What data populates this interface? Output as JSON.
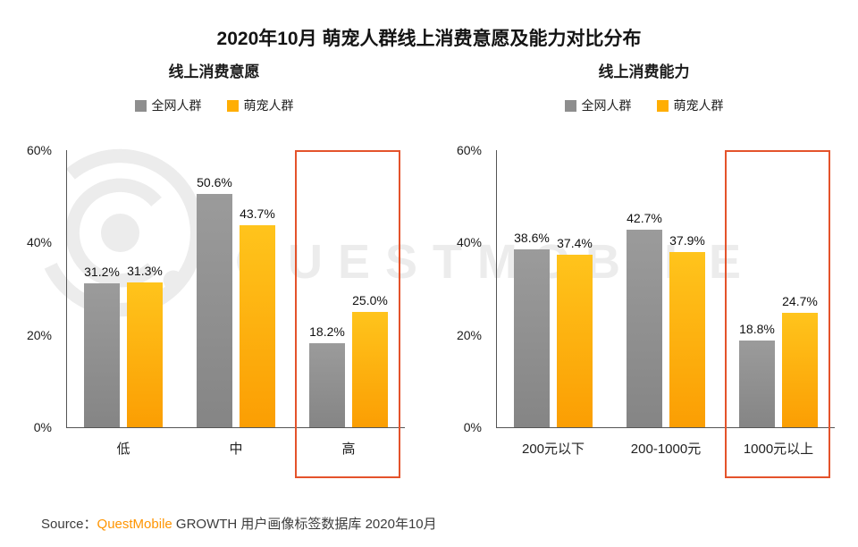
{
  "title": "2020年10月 萌宠人群线上消费意愿及能力对比分布",
  "watermark": "QUESTMOBILE",
  "colors": {
    "gray_bar": "#8e8e8e",
    "orange_bar": "#ffae03",
    "highlight_box": "#e4532b",
    "brand_orange": "#ff9502"
  },
  "source": {
    "prefix": "Source：",
    "brand": "QuestMobile",
    "rest": " GROWTH 用户画像标签数据库 2020年10月"
  },
  "chart_data": [
    {
      "type": "bar",
      "title": "线上消费意愿",
      "categories": [
        "低",
        "中",
        "高"
      ],
      "series": [
        {
          "name": "全网人群",
          "color": "#8e8e8e",
          "values": [
            31.2,
            50.6,
            18.2
          ]
        },
        {
          "name": "萌宠人群",
          "color": "#ffae03",
          "values": [
            31.3,
            43.7,
            25.0
          ]
        }
      ],
      "ylim": [
        0,
        60
      ],
      "yticks": [
        "0%",
        "20%",
        "40%",
        "60%"
      ],
      "legend_position": "top",
      "grid": false,
      "highlight_category": "高",
      "highlight_index": 2
    },
    {
      "type": "bar",
      "title": "线上消费能力",
      "categories": [
        "200元以下",
        "200-1000元",
        "1000元以上"
      ],
      "series": [
        {
          "name": "全网人群",
          "color": "#8e8e8e",
          "values": [
            38.6,
            42.7,
            18.8
          ]
        },
        {
          "name": "萌宠人群",
          "color": "#ffae03",
          "values": [
            37.4,
            37.9,
            24.7
          ]
        }
      ],
      "ylim": [
        0,
        60
      ],
      "yticks": [
        "0%",
        "20%",
        "40%",
        "60%"
      ],
      "legend_position": "top",
      "grid": false,
      "highlight_category": "1000元以上",
      "highlight_index": 2
    }
  ]
}
